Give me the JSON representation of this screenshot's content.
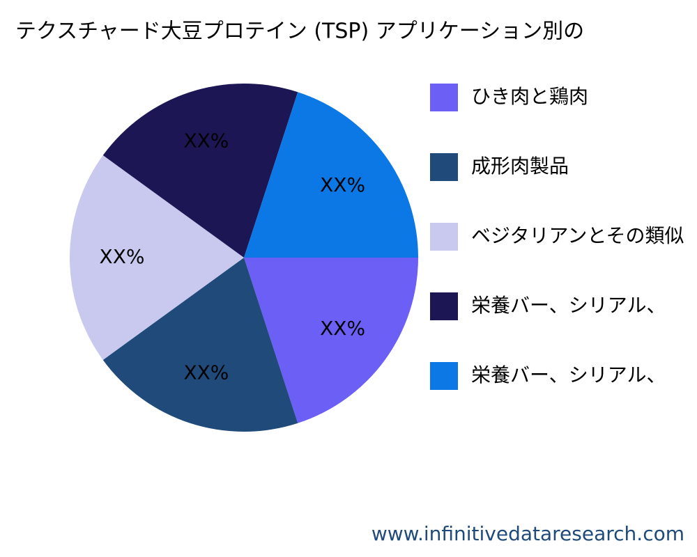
{
  "chart_data": {
    "type": "pie",
    "title": "テクスチャード大豆プロテイン (TSP) アプリケーション別の",
    "categories": [
      "ひき肉と鶏肉",
      "成形肉製品",
      "ベジタリアンとその類似",
      "栄養バー、シリアル、",
      "栄養バー、シリアル、"
    ],
    "values": [
      20,
      20,
      20,
      20,
      20
    ],
    "value_labels": [
      "XX%",
      "XX%",
      "XX%",
      "XX%",
      "XX%"
    ],
    "colors": [
      "#6c5ff5",
      "#1f4a7a",
      "#c9c9f0",
      "#1c1754",
      "#0c78e6"
    ],
    "legend": "right",
    "watermark": "www.infinitivedataresearch.com"
  }
}
